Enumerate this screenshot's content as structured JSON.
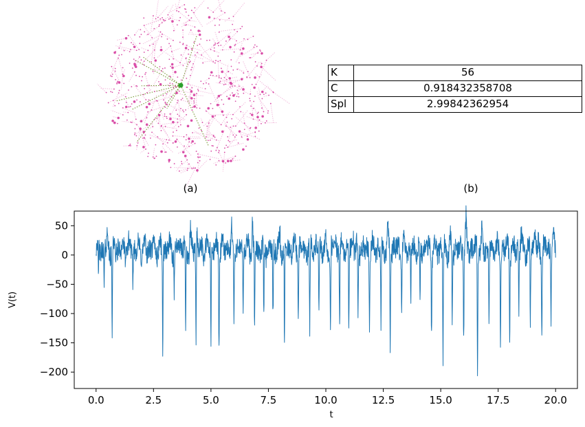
{
  "panels": {
    "a": {
      "label": "(a)"
    },
    "b": {
      "label": "(b)"
    }
  },
  "network": {
    "node_color": "#d94fa8",
    "edge_color": "#f1b6da",
    "hub_color": "#2ca02c",
    "hub_edge_color": "#6b8e23"
  },
  "table": {
    "rows": [
      {
        "key": "K",
        "value": "56"
      },
      {
        "key": "C",
        "value": "0.918432358708"
      },
      {
        "key": "Spl",
        "value": "2.99842362954"
      }
    ]
  },
  "chart_data": {
    "type": "line",
    "title": "",
    "xlabel": "t",
    "ylabel": "V(t)",
    "xlim": [
      -0.95,
      20.95
    ],
    "ylim": [
      -228,
      75
    ],
    "xticks": [
      "0.0",
      "2.5",
      "5.0",
      "7.5",
      "10.0",
      "12.5",
      "15.0",
      "17.5",
      "20.0"
    ],
    "yticks": [
      "50",
      "0",
      "−50",
      "−100",
      "−150",
      "−200"
    ],
    "line_color": "#1f77b4",
    "x_range": [
      0.0,
      20.0
    ],
    "baseline": 10,
    "peaks": [
      [
        0.1,
        40
      ],
      [
        0.5,
        50
      ],
      [
        1.5,
        35
      ],
      [
        2.6,
        30
      ],
      [
        3.6,
        45
      ],
      [
        4.1,
        50
      ],
      [
        4.4,
        62
      ],
      [
        5.0,
        50
      ],
      [
        5.9,
        55
      ],
      [
        6.8,
        63
      ],
      [
        8.0,
        45
      ],
      [
        9.4,
        40
      ],
      [
        10.4,
        45
      ],
      [
        11.2,
        50
      ],
      [
        12.7,
        55
      ],
      [
        13.7,
        58
      ],
      [
        15.4,
        50
      ],
      [
        16.1,
        68
      ],
      [
        16.8,
        55
      ],
      [
        17.7,
        45
      ],
      [
        18.5,
        50
      ],
      [
        19.1,
        58
      ],
      [
        19.9,
        40
      ]
    ],
    "spikes": [
      [
        0.1,
        -70
      ],
      [
        0.35,
        -50
      ],
      [
        0.7,
        -135
      ],
      [
        1.6,
        -60
      ],
      [
        2.9,
        -165
      ],
      [
        3.4,
        -75
      ],
      [
        3.9,
        -155
      ],
      [
        4.35,
        -145
      ],
      [
        5.0,
        -175
      ],
      [
        5.35,
        -155
      ],
      [
        6.0,
        -110
      ],
      [
        6.4,
        -95
      ],
      [
        6.9,
        -140
      ],
      [
        7.3,
        -120
      ],
      [
        7.7,
        -110
      ],
      [
        8.2,
        -175
      ],
      [
        8.8,
        -105
      ],
      [
        9.3,
        -150
      ],
      [
        9.7,
        -110
      ],
      [
        10.2,
        -145
      ],
      [
        10.6,
        -120
      ],
      [
        11.0,
        -135
      ],
      [
        11.4,
        -110
      ],
      [
        11.9,
        -125
      ],
      [
        12.4,
        -120
      ],
      [
        12.8,
        -165
      ],
      [
        13.3,
        -100
      ],
      [
        13.7,
        -115
      ],
      [
        14.1,
        -95
      ],
      [
        14.6,
        -130
      ],
      [
        15.1,
        -180
      ],
      [
        15.5,
        -120
      ],
      [
        16.0,
        -140
      ],
      [
        16.6,
        -210
      ],
      [
        17.1,
        -115
      ],
      [
        17.6,
        -135
      ],
      [
        18.0,
        -140
      ],
      [
        18.4,
        -100
      ],
      [
        18.9,
        -110
      ],
      [
        19.4,
        -140
      ],
      [
        19.8,
        -105
      ]
    ]
  }
}
